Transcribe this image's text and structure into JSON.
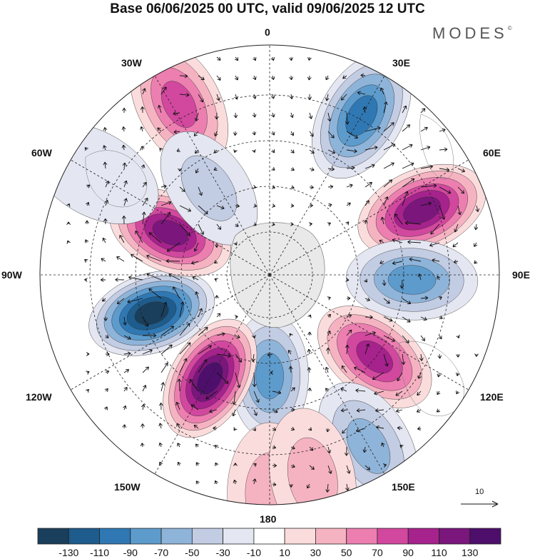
{
  "title": "Base 06/06/2025 00 UTC, valid 09/06/2025 12 UTC",
  "brand": {
    "name": "MODES",
    "mark": "©"
  },
  "longitude_labels": [
    "0",
    "30E",
    "60E",
    "90E",
    "120E",
    "150E",
    "180",
    "150W",
    "120W",
    "90W",
    "60W",
    "30W"
  ],
  "colorbar": {
    "ticks": [
      "-130",
      "-110",
      "-90",
      "-70",
      "-50",
      "-30",
      "-10",
      "10",
      "30",
      "50",
      "70",
      "90",
      "110",
      "130"
    ],
    "colors": [
      "#1a3f5c",
      "#1d5c8c",
      "#2f78b4",
      "#5d9bcc",
      "#8fb4d9",
      "#c2cce3",
      "#e4e6f1",
      "#ffffff",
      "#fbdcdc",
      "#f5b3c2",
      "#ec7fb0",
      "#d2489e",
      "#a6228c",
      "#7a167c",
      "#4d0f6b"
    ]
  },
  "reference_vector": {
    "label": "10"
  },
  "anomalies": [
    {
      "lon": 67,
      "colat": 0.72,
      "value": 125
    },
    {
      "lon": 30,
      "colat": 0.8,
      "value": -95
    },
    {
      "lon": 92,
      "colat": 0.62,
      "value": -70
    },
    {
      "lon": 128,
      "colat": 0.58,
      "value": 100
    },
    {
      "lon": 150,
      "colat": 0.86,
      "value": -55
    },
    {
      "lon": 180,
      "colat": 0.44,
      "value": -70
    },
    {
      "lon": 210,
      "colat": 0.52,
      "value": 130
    },
    {
      "lon": 252,
      "colat": 0.54,
      "value": -130
    },
    {
      "lon": 293,
      "colat": 0.47,
      "value": 125
    },
    {
      "lon": 332,
      "colat": 0.84,
      "value": 70
    },
    {
      "lon": 325,
      "colat": 0.46,
      "value": -45
    },
    {
      "lon": 300,
      "colat": 0.88,
      "value": -25
    },
    {
      "lon": 180,
      "colat": 0.95,
      "value": 45
    },
    {
      "lon": 168,
      "colat": 0.9,
      "value": 30
    }
  ]
}
